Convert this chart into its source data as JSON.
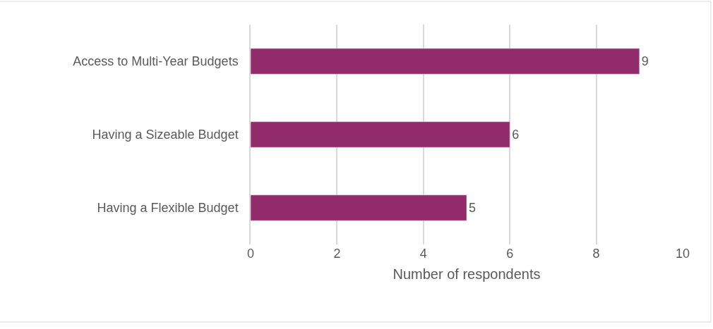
{
  "chart_data": {
    "type": "bar",
    "orientation": "horizontal",
    "xlabel": "Number of respondents",
    "categories": [
      "Access to Multi-Year Budgets",
      "Having a Sizeable Budget",
      "Having a Flexible Budget"
    ],
    "values": [
      9,
      6,
      5
    ],
    "color": "#922b6b",
    "xlim": [
      0,
      10
    ],
    "xticks": [
      0,
      2,
      4,
      6,
      8,
      10
    ],
    "grid": "x",
    "data_labels": true,
    "legend": false
  }
}
